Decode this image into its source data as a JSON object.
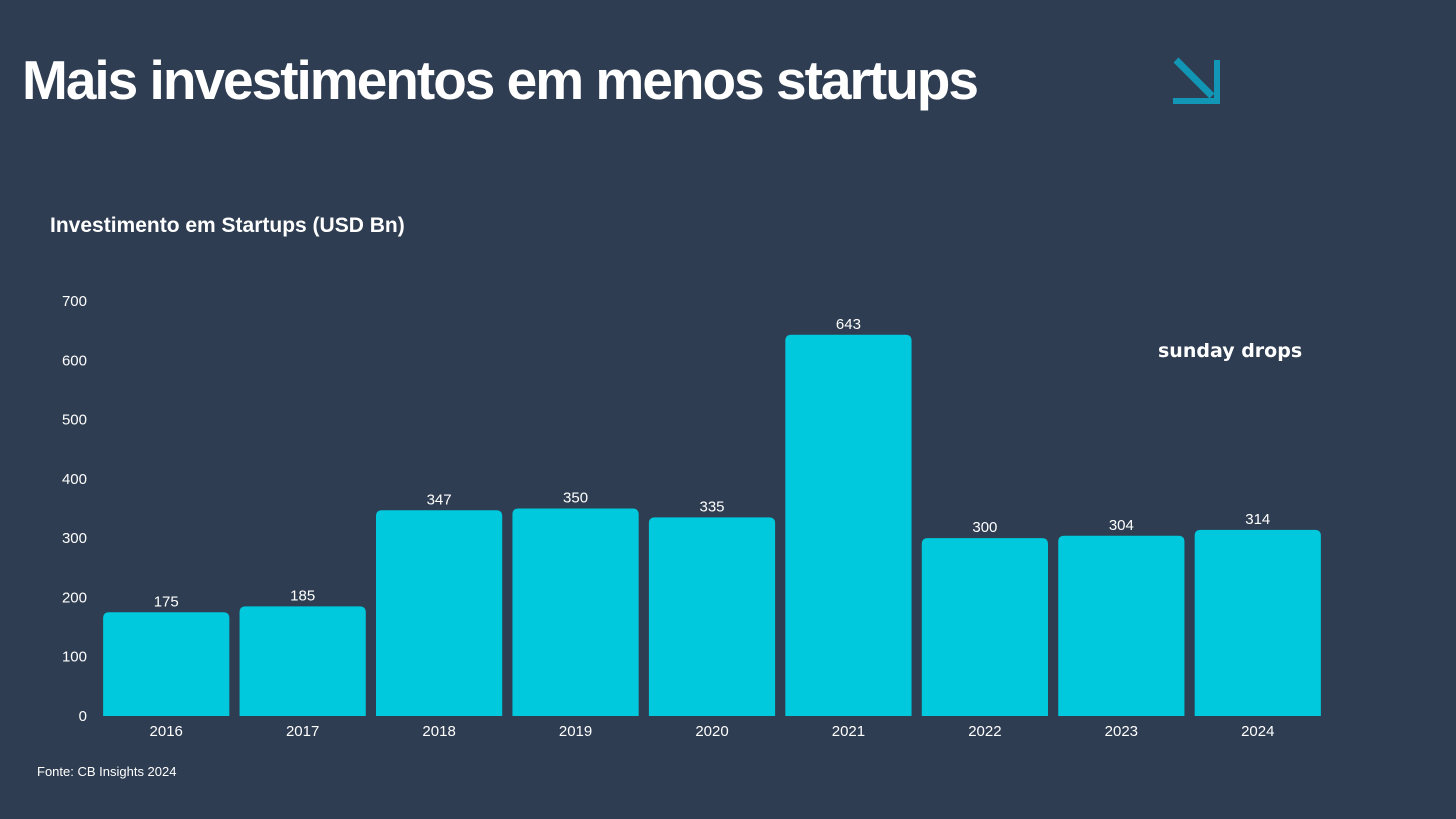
{
  "title": "Mais investimentos em menos startups",
  "brand": "sunday drops",
  "source": "Fonte: CB Insights 2024",
  "icons": {
    "header": "arrow-down-right-icon"
  },
  "colors": {
    "background": "#2e3d51",
    "bar": "#00c9dd",
    "accent": "#1196b5",
    "text": "#ffffff"
  },
  "chart_data": {
    "type": "bar",
    "title": "Investimento em Startups  (USD Bn)",
    "categories": [
      "2016",
      "2017",
      "2018",
      "2019",
      "2020",
      "2021",
      "2022",
      "2023",
      "2024"
    ],
    "values": [
      175,
      185,
      347,
      350,
      335,
      643,
      300,
      304,
      314
    ],
    "yticks": [
      0,
      100,
      200,
      300,
      400,
      500,
      600,
      700
    ],
    "ylim": [
      0,
      700
    ],
    "xlabel": "",
    "ylabel": "",
    "grid": false,
    "data_labels": true
  }
}
